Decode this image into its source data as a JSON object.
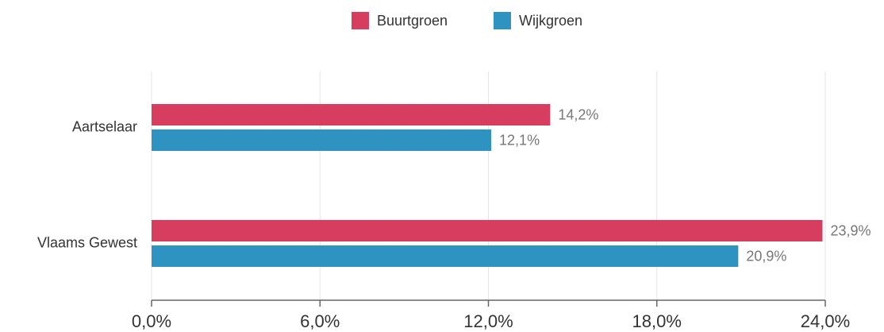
{
  "chart_data": {
    "type": "hbar",
    "categories": [
      "Aartselaar",
      "Vlaams Gewest"
    ],
    "series": [
      {
        "name": "Buurtgroen",
        "color": "#d63d5e",
        "values": [
          14.2,
          23.9
        ],
        "value_labels": [
          "14,2%",
          "23,9%"
        ]
      },
      {
        "name": "Wijkgroen",
        "color": "#2e93c0",
        "values": [
          12.1,
          20.9
        ],
        "value_labels": [
          "12,1%",
          "20,9%"
        ]
      }
    ],
    "xlim": [
      0,
      24
    ],
    "xticks": [
      {
        "value": 0,
        "label": "0,0%"
      },
      {
        "value": 6,
        "label": "6,0%"
      },
      {
        "value": 12,
        "label": "12,0%"
      },
      {
        "value": 18,
        "label": "18,0%"
      },
      {
        "value": 24,
        "label": "24,0%"
      }
    ],
    "grid": true,
    "legend": "top"
  }
}
